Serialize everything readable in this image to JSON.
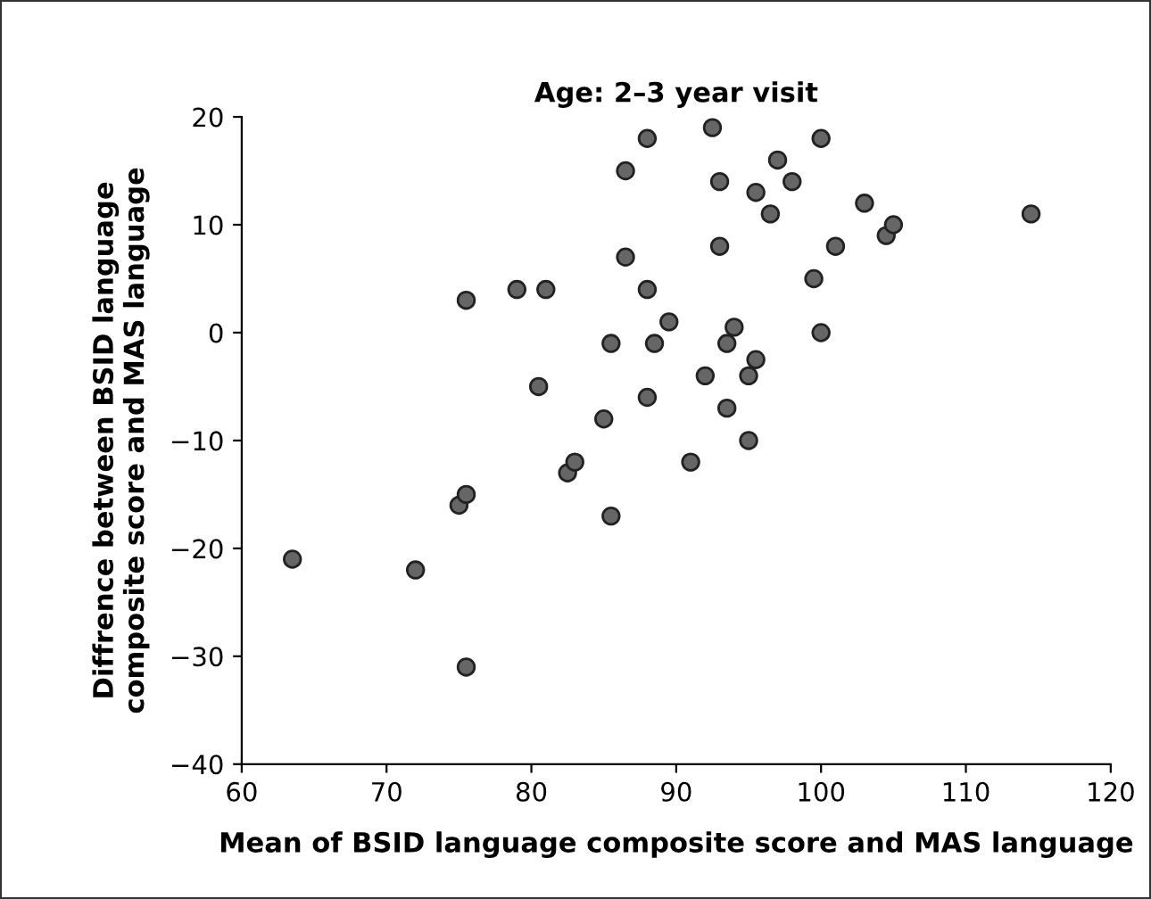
{
  "chart_data": {
    "type": "scatter",
    "title": "Age: 2–3 year visit",
    "xlabel": "Mean of BSID language composite score and MAS language",
    "ylabel": "Diffrence between BSID language\ncomposite score and MAS language",
    "x": [
      63.5,
      72,
      75.5,
      75,
      75.5,
      75.5,
      79,
      81,
      80.5,
      82.5,
      83,
      85,
      85.5,
      85.5,
      86.5,
      86.5,
      88,
      88,
      88,
      88.5,
      89.5,
      91,
      92,
      92.5,
      93,
      93,
      93.5,
      93.5,
      94,
      95,
      95,
      95.5,
      95.5,
      96.5,
      97,
      98,
      99.5,
      100,
      100,
      101,
      103,
      104.5,
      105,
      114.5
    ],
    "series": [
      {
        "color": "#666666",
        "values": [
          -21,
          -22,
          -31,
          -16,
          -15,
          3,
          4,
          4,
          -5,
          -13,
          -12,
          -8,
          -17,
          -1,
          15,
          7,
          18,
          4,
          -6,
          -1,
          1,
          -12,
          -4,
          19,
          14,
          8,
          -1,
          -7,
          0.5,
          -4,
          -10,
          13,
          -2.5,
          11,
          16,
          14,
          5,
          18,
          0,
          8,
          12,
          9,
          10,
          11
        ]
      }
    ],
    "xlim": [
      60,
      120
    ],
    "ylim": [
      -40,
      20
    ],
    "xticks": [
      60,
      70,
      80,
      90,
      100,
      110,
      120
    ],
    "yticks": [
      -40,
      -30,
      -20,
      -10,
      0,
      10,
      20
    ],
    "grid": false,
    "marker": "circle"
  }
}
